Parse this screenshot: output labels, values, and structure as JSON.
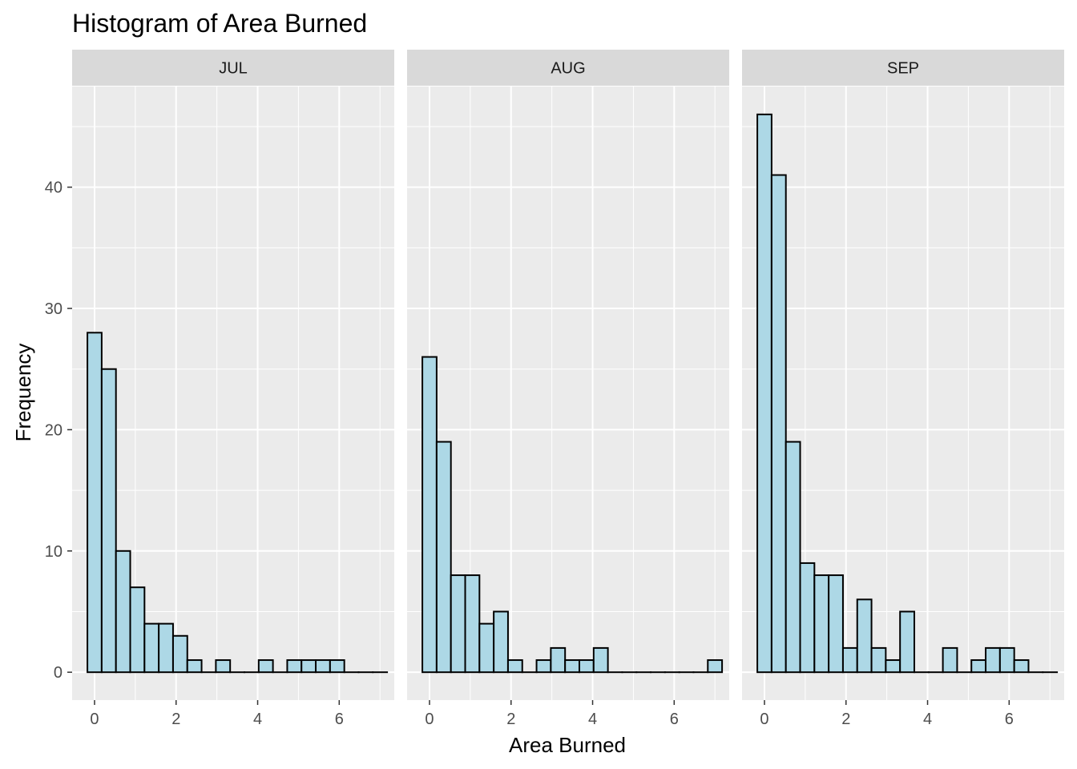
{
  "chart_data": {
    "type": "bar",
    "title": "Histogram of Area Burned",
    "xlabel": "Area Burned",
    "ylabel": "Frequency",
    "bin_width": 0.35,
    "bin_starts": [
      -0.175,
      0.175,
      0.525,
      0.875,
      1.225,
      1.575,
      1.925,
      2.275,
      2.625,
      2.975,
      3.325,
      3.675,
      4.025,
      4.375,
      4.725,
      5.075,
      5.425,
      5.775,
      6.125,
      6.475,
      6.825
    ],
    "xlim": [
      -0.55,
      7.35
    ],
    "ylim": [
      -2.3,
      48.3
    ],
    "x_ticks": [
      0,
      2,
      4,
      6
    ],
    "y_ticks": [
      0,
      10,
      20,
      30,
      40
    ],
    "grid": true,
    "panels": [
      {
        "name": "JUL",
        "values": [
          28,
          25,
          10,
          7,
          4,
          4,
          3,
          1,
          0,
          1,
          0,
          0,
          1,
          0,
          1,
          1,
          1,
          1,
          0,
          0,
          0
        ]
      },
      {
        "name": "AUG",
        "values": [
          26,
          19,
          8,
          8,
          4,
          5,
          1,
          0,
          1,
          2,
          1,
          1,
          2,
          0,
          0,
          0,
          0,
          0,
          0,
          0,
          1
        ]
      },
      {
        "name": "SEP",
        "values": [
          46,
          41,
          19,
          9,
          8,
          8,
          2,
          6,
          2,
          1,
          5,
          0,
          0,
          2,
          0,
          1,
          2,
          2,
          1,
          0,
          0
        ]
      }
    ]
  }
}
